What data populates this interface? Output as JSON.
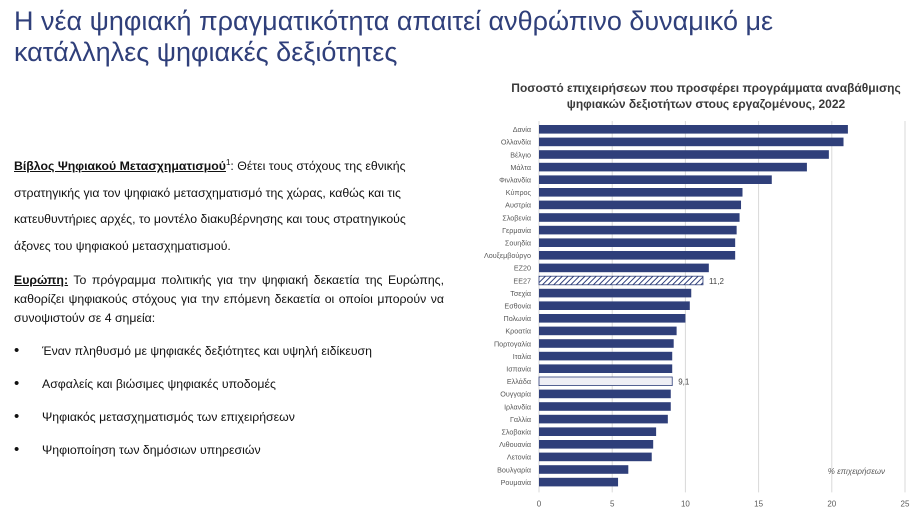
{
  "slide": {
    "title": "Η νέα ψηφιακή πραγματικότητα απαιτεί ανθρώπινο δυναμικό με κατάλληλες ψηφιακές δεξιότητες",
    "book_term": "Βίβλος Ψηφιακού Μετασχηματισμού",
    "book_sup": "1",
    "book_text": ": Θέτει τους στόχους της εθνικής στρατηγικής για τον ψηφιακό μετασχηματισμό της χώρας, καθώς και τις κατευθυντήριες αρχές, το μοντέλο διακυβέρνησης και τους στρατηγικούς άξονες του ψηφιακού μετασχηματισμού.",
    "europe_term": "Ευρώπη:",
    "europe_text": " Το πρόγραμμα πολιτικής για την ψηφιακή δεκαετία της Ευρώπης, καθορίζει ψηφιακούς στόχους για την επόμενη δεκαετία οι οποίοι μπορούν να συνοψιστούν σε 4 σημεία:",
    "bullets": [
      "Έναν πληθυσμό με ψηφιακές δεξιότητες και υψηλή ειδίκευση",
      "Ασφαλείς και βιώσιμες ψηφιακές υποδομές",
      "Ψηφιακός μετασχηματισμός των επιχειρήσεων",
      "Ψηφιοποίηση των δημόσιων υπηρεσιών"
    ]
  },
  "chart_data": {
    "type": "bar",
    "orientation": "horizontal",
    "title": "Ποσοστό επιχειρήσεων που προσφέρει προγράμματα αναβάθμισης ψηφιακών δεξιοτήτων στους εργαζομένους, 2022",
    "unit_note": "% επιχειρήσεων",
    "categories": [
      "Δανία",
      "Ολλανδία",
      "Βέλγιο",
      "Μάλτα",
      "Φινλανδία",
      "Κύπρος",
      "Αυστρία",
      "Σλοβενία",
      "Γερμανία",
      "Σουηδία",
      "Λουξεμβούργο",
      "ΕΖ20",
      "ΕΕ27",
      "Τσεχία",
      "Εσθονία",
      "Πολωνία",
      "Κροατία",
      "Πορτογαλία",
      "Ιταλία",
      "Ισπανία",
      "Ελλάδα",
      "Ουγγαρία",
      "Ιρλανδία",
      "Γαλλία",
      "Σλοβακία",
      "Λιθουανία",
      "Λετονία",
      "Βουλγαρία",
      "Ρουμανία"
    ],
    "values": [
      21.1,
      20.8,
      19.8,
      18.3,
      15.9,
      13.9,
      13.8,
      13.7,
      13.5,
      13.4,
      13.4,
      11.6,
      11.2,
      10.4,
      10.3,
      10.0,
      9.4,
      9.2,
      9.1,
      9.1,
      9.1,
      9.0,
      9.0,
      8.8,
      8.0,
      7.8,
      7.7,
      6.1,
      5.4
    ],
    "highlight": {
      "ΕΕ27": "hatched",
      "Ελλάδα": "light"
    },
    "data_labels": [
      {
        "category": "ΕΕ27",
        "label": "11,2"
      },
      {
        "category": "Ελλάδα",
        "label": "9,1"
      }
    ],
    "xlim": [
      0,
      25
    ],
    "xticks": [
      0,
      5,
      10,
      15,
      20,
      25
    ],
    "grid": true,
    "colors": {
      "bar": "#2f3f7a",
      "highlight_fill": "#eeeef4",
      "grid": "#d9d9d9",
      "label": "#595959"
    }
  }
}
